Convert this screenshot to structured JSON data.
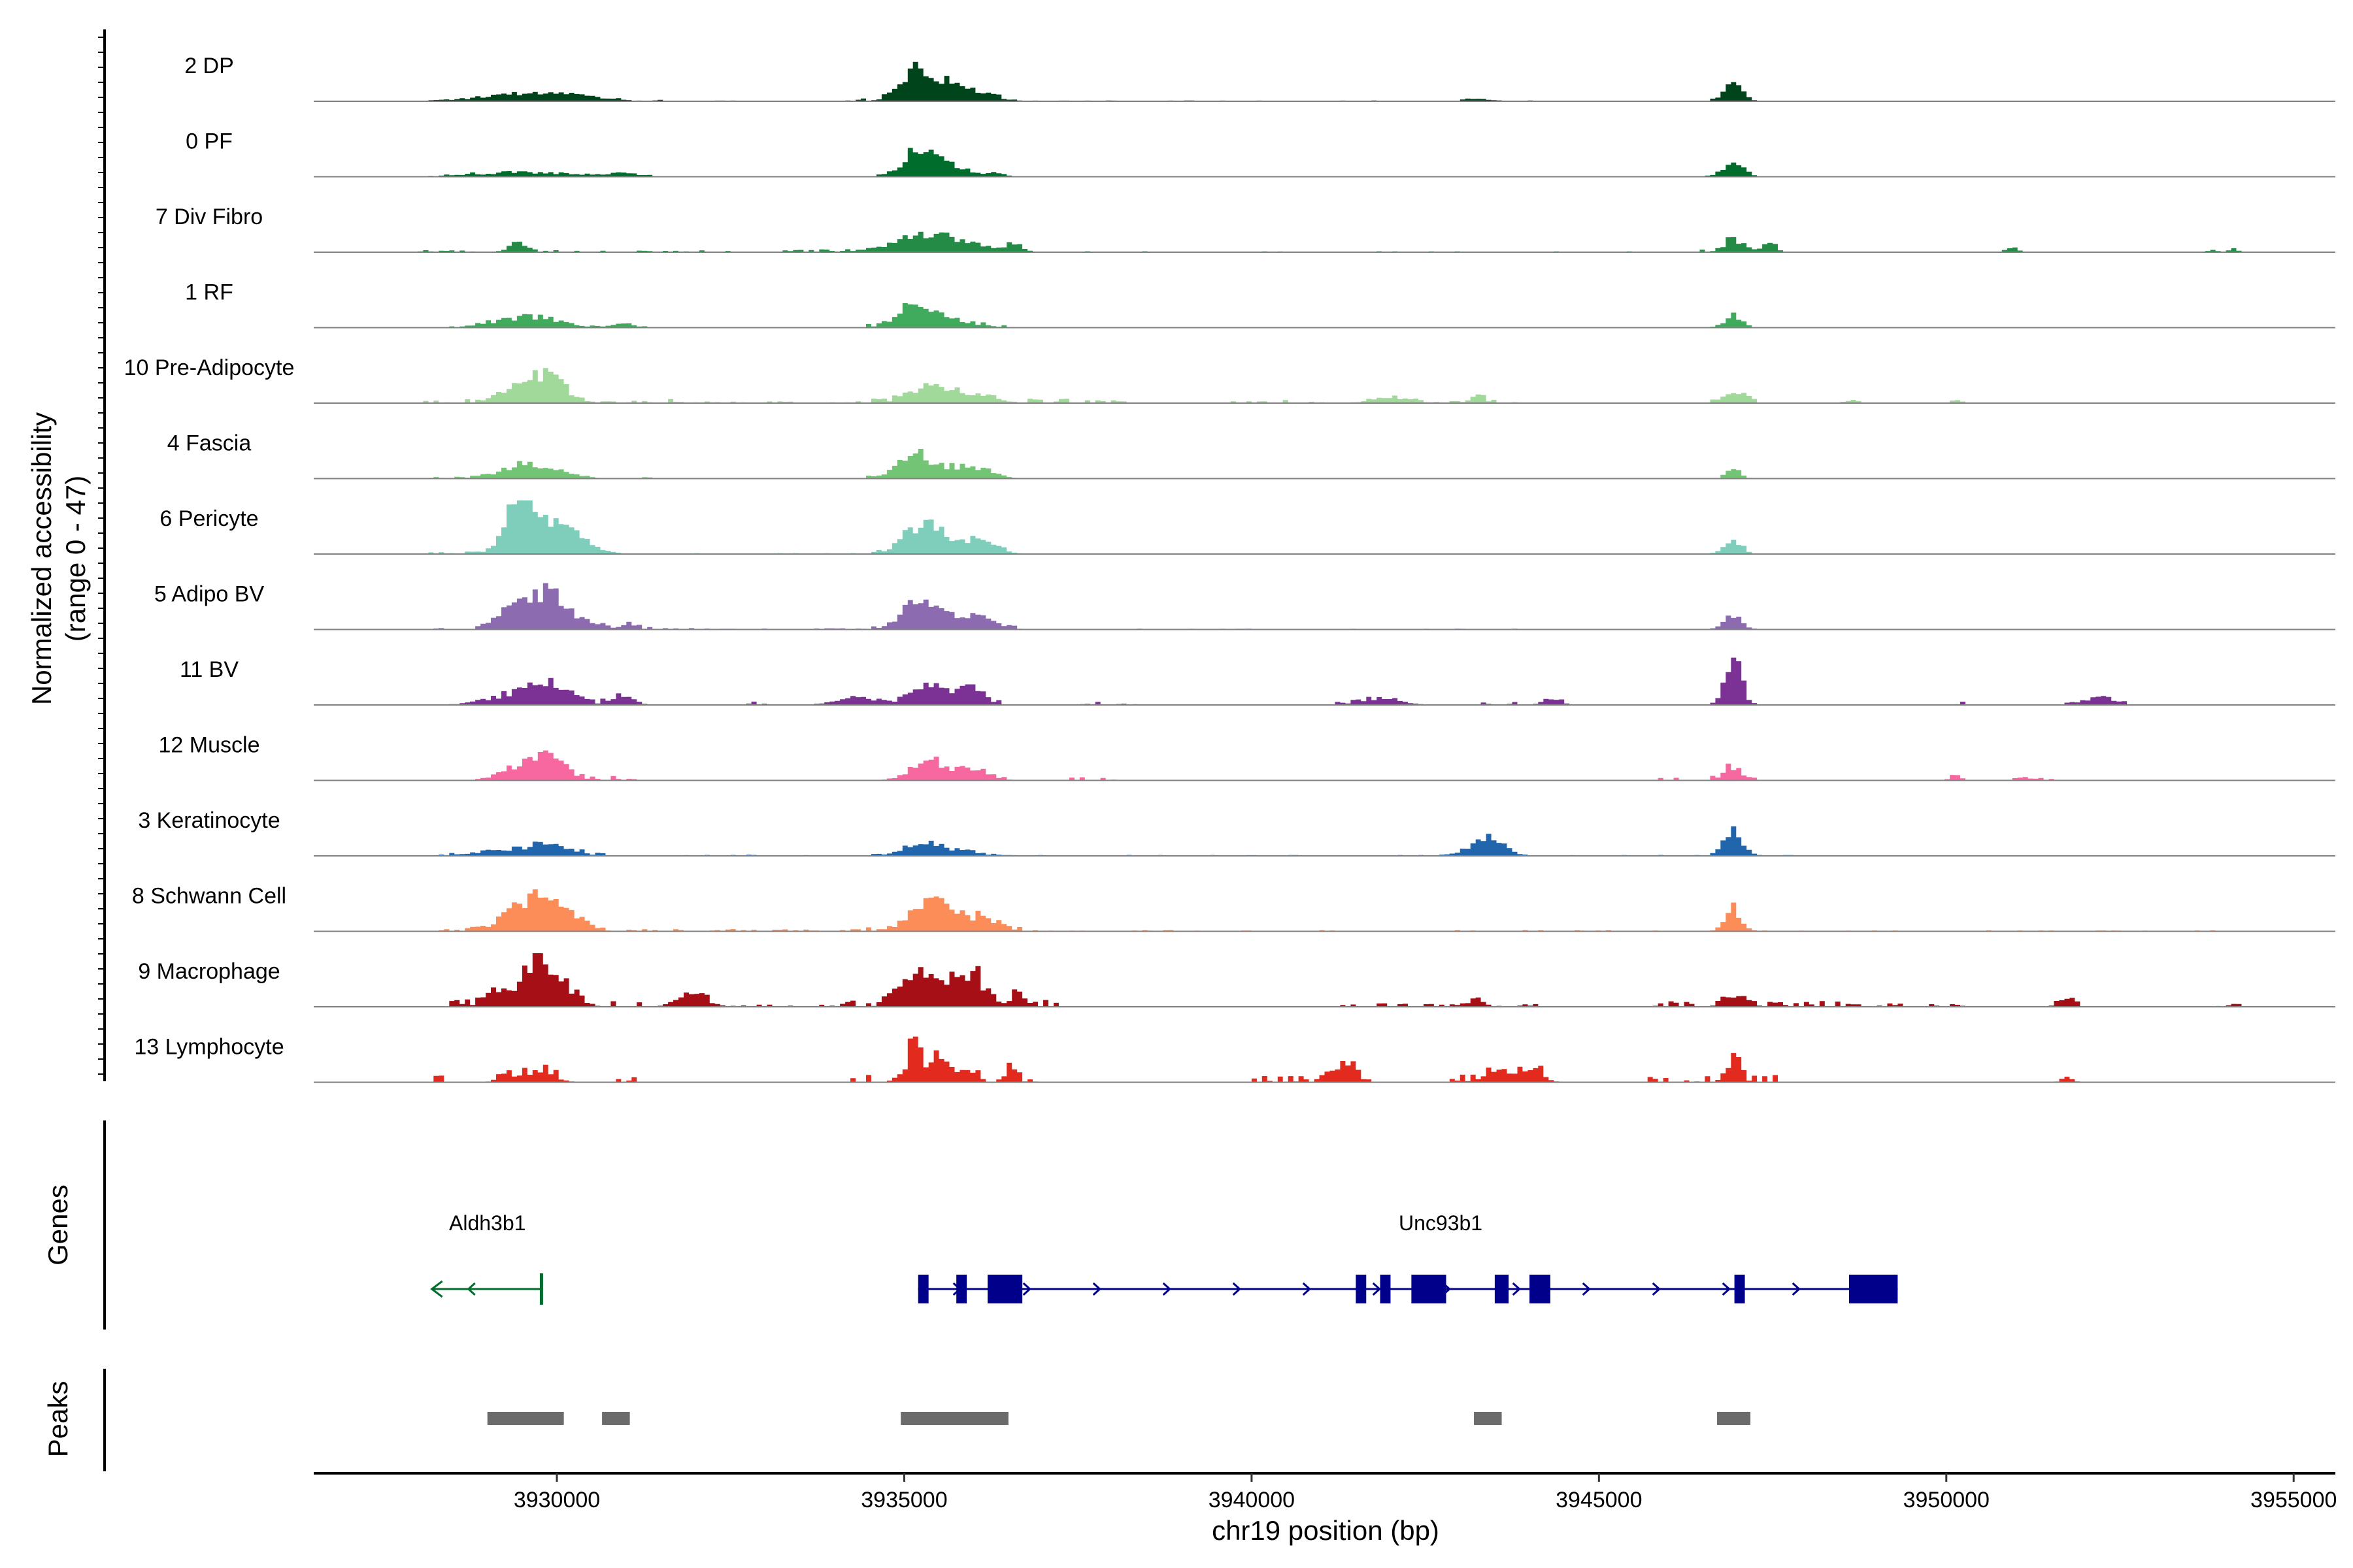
{
  "chart_data": {
    "type": "area",
    "title": "",
    "ylabel": "Normalized accessibility",
    "ylabel_range": "(range 0 - 47)",
    "ylim": [
      0,
      47
    ],
    "xlabel": "chr19 position (bp)",
    "xlim": [
      3926500,
      3955600
    ],
    "xticks": [
      3930000,
      3935000,
      3940000,
      3945000,
      3950000,
      3955000
    ],
    "xtick_labels": [
      "3930000",
      "3935000",
      "3940000",
      "3945000",
      "3950000",
      "3955000"
    ],
    "bin_bp": 75,
    "series": [
      {
        "name": "2 DP",
        "color": "#00441b",
        "peaks": [
          [
            3929500,
            6,
            700
          ],
          [
            3930000,
            4,
            500
          ],
          [
            3935200,
            34,
            260
          ],
          [
            3935700,
            8,
            350
          ],
          [
            3936000,
            6,
            300
          ],
          [
            3943200,
            3,
            150
          ],
          [
            3946900,
            18,
            140
          ]
        ],
        "noise": [
          [
            3928200,
            3931500,
            1.5
          ],
          [
            3932000,
            3934400,
            0.8
          ],
          [
            3934300,
            3936400,
            2.5
          ],
          [
            3936400,
            3947500,
            0.7
          ],
          [
            3947500,
            3954000,
            0.5
          ]
        ]
      },
      {
        "name": "0 PF",
        "color": "#006d2c",
        "peaks": [
          [
            3929500,
            5,
            700
          ],
          [
            3930900,
            4,
            200
          ],
          [
            3935200,
            30,
            220
          ],
          [
            3935700,
            8,
            350
          ],
          [
            3946900,
            16,
            150
          ]
        ],
        "noise": [
          [
            3928200,
            3931500,
            1.2
          ],
          [
            3931500,
            3934400,
            0.6
          ],
          [
            3934400,
            3936400,
            2.5
          ],
          [
            3936400,
            3947600,
            0.6
          ],
          [
            3947600,
            3954000,
            0.4
          ]
        ]
      },
      {
        "name": "7 Div Fibro",
        "color": "#238b45",
        "peaks": [
          [
            3929400,
            9,
            150
          ],
          [
            3934700,
            6,
            250
          ],
          [
            3935300,
            18,
            300
          ],
          [
            3935900,
            8,
            300
          ],
          [
            3936500,
            7,
            150
          ],
          [
            3946900,
            14,
            140
          ],
          [
            3947400,
            9,
            100
          ],
          [
            3950900,
            6,
            80
          ],
          [
            3953800,
            3,
            60
          ],
          [
            3954100,
            4,
            60
          ]
        ],
        "noise": [
          [
            3928000,
            3932800,
            1.8
          ],
          [
            3933200,
            3936800,
            2.5
          ],
          [
            3937500,
            3941000,
            0.8
          ],
          [
            3941800,
            3945500,
            0.8
          ],
          [
            3946400,
            3947600,
            2.5
          ]
        ]
      },
      {
        "name": "1 RF",
        "color": "#41ab5d",
        "peaks": [
          [
            3929400,
            10,
            400
          ],
          [
            3929900,
            5,
            300
          ],
          [
            3930900,
            5,
            150
          ],
          [
            3935100,
            24,
            250
          ],
          [
            3935700,
            7,
            300
          ],
          [
            3946900,
            14,
            120
          ]
        ],
        "noise": [
          [
            3928200,
            3931800,
            1.2
          ],
          [
            3931800,
            3934400,
            0.6
          ],
          [
            3934400,
            3936400,
            2.5
          ],
          [
            3936400,
            3947500,
            0.5
          ],
          [
            3947500,
            3953500,
            0.4
          ]
        ]
      },
      {
        "name": "10 Pre-Adipocyte",
        "color": "#a1d99b",
        "peaks": [
          [
            3929500,
            22,
            300
          ],
          [
            3929900,
            26,
            180
          ],
          [
            3935300,
            15,
            300
          ],
          [
            3935900,
            10,
            300
          ],
          [
            3946900,
            12,
            150
          ],
          [
            3942000,
            5,
            300
          ],
          [
            3943200,
            9,
            100
          ],
          [
            3948600,
            3,
            100
          ],
          [
            3950100,
            3,
            80
          ]
        ],
        "noise": [
          [
            3927900,
            3931700,
            4
          ],
          [
            3931700,
            3934300,
            1.5
          ],
          [
            3934300,
            3937300,
            4
          ],
          [
            3937300,
            3938200,
            3
          ],
          [
            3939500,
            3941000,
            3
          ],
          [
            3941400,
            3943800,
            3
          ],
          [
            3946400,
            3947600,
            4
          ]
        ]
      },
      {
        "name": "4 Fascia",
        "color": "#74c476",
        "peaks": [
          [
            3929500,
            14,
            350
          ],
          [
            3930000,
            4,
            300
          ],
          [
            3935100,
            24,
            220
          ],
          [
            3935600,
            10,
            350
          ],
          [
            3936000,
            8,
            250
          ],
          [
            3946900,
            12,
            100
          ]
        ],
        "noise": [
          [
            3928200,
            3931500,
            1.5
          ],
          [
            3931500,
            3934400,
            0.5
          ],
          [
            3934400,
            3936400,
            2.5
          ],
          [
            3936400,
            3947500,
            0.5
          ],
          [
            3947500,
            3953000,
            0.3
          ]
        ]
      },
      {
        "name": "6 Pericyte",
        "color": "#7fcdbb",
        "peaks": [
          [
            3929400,
            50,
            200
          ],
          [
            3929800,
            35,
            300
          ],
          [
            3930300,
            12,
            250
          ],
          [
            3935200,
            28,
            250
          ],
          [
            3935700,
            14,
            300
          ],
          [
            3936100,
            6,
            250
          ],
          [
            3946900,
            16,
            120
          ]
        ],
        "noise": [
          [
            3928100,
            3931500,
            2.5
          ],
          [
            3931500,
            3934400,
            0.8
          ],
          [
            3934400,
            3936700,
            3.5
          ],
          [
            3936700,
            3947500,
            0.6
          ],
          [
            3947500,
            3953800,
            0.4
          ]
        ]
      },
      {
        "name": "5 Adipo BV",
        "color": "#8c6bb1",
        "peaks": [
          [
            3929400,
            28,
            250
          ],
          [
            3929900,
            38,
            200
          ],
          [
            3930400,
            10,
            200
          ],
          [
            3931000,
            6,
            120
          ],
          [
            3935200,
            30,
            250
          ],
          [
            3935700,
            12,
            300
          ],
          [
            3936100,
            8,
            200
          ],
          [
            3946900,
            16,
            120
          ]
        ],
        "noise": [
          [
            3928200,
            3931500,
            2.5
          ],
          [
            3931500,
            3934400,
            1.2
          ],
          [
            3934400,
            3936700,
            3
          ],
          [
            3936700,
            3947500,
            0.7
          ],
          [
            3947500,
            3954000,
            0.4
          ]
        ]
      },
      {
        "name": "11 BV",
        "color": "#7b3294",
        "peaks": [
          [
            3929400,
            12,
            400
          ],
          [
            3929900,
            22,
            250
          ],
          [
            3930900,
            12,
            150
          ],
          [
            3934300,
            8,
            300
          ],
          [
            3935300,
            20,
            250
          ],
          [
            3935900,
            18,
            200
          ],
          [
            3946900,
            45,
            120
          ],
          [
            3952200,
            10,
            150
          ],
          [
            3941800,
            6,
            300
          ],
          [
            3944300,
            6,
            100
          ]
        ],
        "noise": [
          [
            3928700,
            3931200,
            4
          ],
          [
            3932700,
            3933000,
            3
          ],
          [
            3933800,
            3936500,
            3
          ],
          [
            3937500,
            3938300,
            3
          ],
          [
            3941200,
            3942300,
            3
          ],
          [
            3943200,
            3944700,
            3
          ],
          [
            3946500,
            3947200,
            4
          ],
          [
            3950000,
            3950300,
            3
          ],
          [
            3951700,
            3952700,
            3
          ]
        ]
      },
      {
        "name": "12 Muscle",
        "color": "#f768a1",
        "peaks": [
          [
            3929500,
            16,
            300
          ],
          [
            3929900,
            22,
            200
          ],
          [
            3935300,
            20,
            250
          ],
          [
            3935900,
            12,
            250
          ],
          [
            3946900,
            16,
            120
          ],
          [
            3950100,
            6,
            80
          ]
        ],
        "noise": [
          [
            3929000,
            3931200,
            4
          ],
          [
            3934600,
            3936600,
            4
          ],
          [
            3937200,
            3938000,
            3
          ],
          [
            3945700,
            3946100,
            3
          ],
          [
            3946600,
            3947200,
            4
          ],
          [
            3950000,
            3950300,
            3
          ],
          [
            3950900,
            3951500,
            3
          ]
        ]
      },
      {
        "name": "3 Keratinocyte",
        "color": "#2166ac",
        "peaks": [
          [
            3929400,
            6,
            500
          ],
          [
            3929900,
            8,
            300
          ],
          [
            3935200,
            12,
            250
          ],
          [
            3935700,
            5,
            300
          ],
          [
            3943200,
            12,
            200
          ],
          [
            3943500,
            16,
            150
          ],
          [
            3946900,
            30,
            130
          ]
        ],
        "noise": [
          [
            3928200,
            3931500,
            2
          ],
          [
            3931500,
            3934400,
            1
          ],
          [
            3934400,
            3936500,
            2
          ],
          [
            3936500,
            3947800,
            0.8
          ],
          [
            3947800,
            3954000,
            0.6
          ]
        ]
      },
      {
        "name": "8 Schwann Cell",
        "color": "#fc8d59",
        "peaks": [
          [
            3929500,
            30,
            300
          ],
          [
            3929900,
            18,
            250
          ],
          [
            3930300,
            8,
            200
          ],
          [
            3935300,
            32,
            250
          ],
          [
            3935800,
            14,
            300
          ],
          [
            3936200,
            8,
            200
          ],
          [
            3946900,
            26,
            120
          ]
        ],
        "noise": [
          [
            3928200,
            3931500,
            3
          ],
          [
            3931500,
            3934400,
            2
          ],
          [
            3934400,
            3936700,
            3.5
          ],
          [
            3936700,
            3947600,
            1
          ],
          [
            3947600,
            3953800,
            0.8
          ]
        ]
      },
      {
        "name": "9 Macrophage",
        "color": "#a50f15",
        "peaks": [
          [
            3929100,
            20,
            150
          ],
          [
            3929600,
            40,
            150
          ],
          [
            3929900,
            34,
            150
          ],
          [
            3930200,
            14,
            150
          ],
          [
            3931900,
            16,
            200
          ],
          [
            3935100,
            40,
            220
          ],
          [
            3935600,
            26,
            200
          ],
          [
            3936000,
            30,
            150
          ],
          [
            3936600,
            14,
            100
          ],
          [
            3943200,
            10,
            100
          ],
          [
            3946900,
            12,
            150
          ],
          [
            3951700,
            10,
            100
          ]
        ],
        "noise": [
          [
            3928200,
            3931200,
            7
          ],
          [
            3931700,
            3932200,
            7
          ],
          [
            3932500,
            3934000,
            2
          ],
          [
            3934000,
            3937200,
            6
          ],
          [
            3941200,
            3944300,
            3
          ],
          [
            3945500,
            3948400,
            5
          ],
          [
            3948400,
            3950600,
            3
          ],
          [
            3951300,
            3951900,
            4
          ],
          [
            3953800,
            3954200,
            3
          ]
        ]
      },
      {
        "name": "13 Lymphocyte",
        "color": "#e32a1f",
        "peaks": [
          [
            3929200,
            10,
            100
          ],
          [
            3929700,
            14,
            200
          ],
          [
            3935100,
            45,
            90
          ],
          [
            3935400,
            22,
            150
          ],
          [
            3935800,
            14,
            150
          ],
          [
            3936500,
            18,
            80
          ],
          [
            3941300,
            20,
            150
          ],
          [
            3943500,
            10,
            200
          ],
          [
            3944000,
            16,
            150
          ],
          [
            3946900,
            28,
            100
          ],
          [
            3951700,
            5,
            80
          ]
        ],
        "noise": [
          [
            3928200,
            3928500,
            8
          ],
          [
            3929000,
            3930000,
            8
          ],
          [
            3930700,
            3931200,
            5
          ],
          [
            3934100,
            3935300,
            8
          ],
          [
            3935300,
            3936900,
            9
          ],
          [
            3940000,
            3941700,
            6
          ],
          [
            3942800,
            3944300,
            8
          ],
          [
            3945700,
            3947500,
            7
          ],
          [
            3951500,
            3951800,
            5
          ]
        ]
      }
    ],
    "genes_track_label": "Genes",
    "genes": [
      {
        "name": "Aldh3b1",
        "strand": "-",
        "color": "#006d2c",
        "start": 3928200,
        "end": 3929800,
        "exons": [
          [
            3929750,
            3929790
          ]
        ]
      },
      {
        "name": "Unc93b1",
        "strand": "+",
        "color": "#00008b",
        "start": 3935200,
        "end": 3949300,
        "exons": [
          [
            3935200,
            3935350
          ],
          [
            3935750,
            3935900
          ],
          [
            3936200,
            3936700
          ],
          [
            3941500,
            3941650
          ],
          [
            3941850,
            3942000
          ],
          [
            3942300,
            3942800
          ],
          [
            3943500,
            3943700
          ],
          [
            3944000,
            3944300
          ],
          [
            3946950,
            3947100
          ],
          [
            3948600,
            3949300
          ]
        ]
      }
    ],
    "peaks_track_label": "Peaks",
    "peak_regions": [
      [
        3929000,
        3930100
      ],
      [
        3930650,
        3931050
      ],
      [
        3934950,
        3936500
      ],
      [
        3943200,
        3943600
      ],
      [
        3946700,
        3947180
      ]
    ]
  }
}
